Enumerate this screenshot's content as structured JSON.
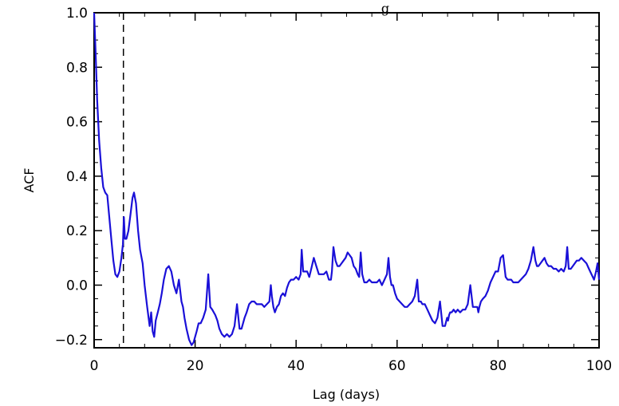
{
  "chart_data": {
    "type": "line",
    "title": "ACF Plot for Kepler-Star-Sample-Lag",
    "title_visible_fragment": "g",
    "xlabel": "Lag (days)",
    "ylabel": "ACF",
    "xlim": [
      0,
      100
    ],
    "ylim": [
      -0.23,
      1.0
    ],
    "x_ticks": [
      0,
      20,
      40,
      60,
      80,
      100
    ],
    "x_tick_labels": [
      "0",
      "20",
      "40",
      "60",
      "80",
      "100"
    ],
    "y_ticks": [
      -0.2,
      0.0,
      0.2,
      0.4,
      0.6,
      0.8,
      1.0
    ],
    "y_tick_labels": [
      "−0.2",
      "0.0",
      "0.2",
      "0.4",
      "0.6",
      "0.8",
      "1.0"
    ],
    "grid": false,
    "vertical_reference_line": {
      "x": 5.8,
      "style": "dashed",
      "color": "#000000"
    },
    "series": [
      {
        "color": "#1a10d8",
        "x": [
          0,
          0.3,
          0.6,
          1,
          1.4,
          1.8,
          2.2,
          2.6,
          3,
          3.4,
          3.8,
          4.2,
          4.6,
          5,
          5.4,
          5.7,
          5.9,
          6.1,
          6.4,
          6.8,
          7.2,
          7.6,
          7.9,
          8.3,
          8.7,
          9.1,
          9.6,
          10,
          10.5,
          11,
          11.3,
          11.6,
          11.9,
          12.2,
          12.6,
          13,
          13.4,
          13.8,
          14.3,
          14.8,
          15.3,
          15.8,
          16.3,
          16.8,
          17.3,
          17.6,
          17.9,
          18.3,
          18.8,
          19.3,
          19.7,
          20,
          20.3,
          20.7,
          21.1,
          21.6,
          22.1,
          22.6,
          23,
          23.4,
          23.7,
          24,
          24.4,
          24.8,
          25.3,
          25.8,
          26.3,
          26.8,
          27.3,
          27.8,
          28.3,
          28.8,
          29.2,
          29.5,
          29.8,
          30.2,
          30.7,
          31.2,
          31.7,
          32.2,
          32.7,
          33.2,
          33.7,
          34.2,
          34.7,
          35,
          35.2,
          35.5,
          35.8,
          36.2,
          36.6,
          37,
          37.4,
          37.8,
          38.2,
          38.6,
          39,
          39.5,
          40,
          40.5,
          40.9,
          41.1,
          41.4,
          41.8,
          42.2,
          42.6,
          43,
          43.5,
          44,
          44.5,
          45,
          45.5,
          46,
          46.5,
          46.9,
          47.1,
          47.4,
          47.8,
          48.2,
          48.6,
          49,
          49.4,
          49.8,
          50.2,
          50.6,
          51,
          51.4,
          51.8,
          52.2,
          52.5,
          52.8,
          53.1,
          53.5,
          54,
          54.5,
          55,
          55.5,
          56,
          56.5,
          57,
          57.5,
          58,
          58.3,
          58.6,
          58.9,
          59.2,
          59.6,
          60,
          60.5,
          61,
          61.5,
          62,
          62.5,
          63,
          63.5,
          64,
          64.3,
          64.5,
          64.7,
          65,
          65.5,
          66,
          66.5,
          67,
          67.5,
          68,
          68.5,
          69,
          69.5,
          69.9,
          70.1,
          70.3,
          70.5,
          70.8,
          71.2,
          71.6,
          72,
          72.5,
          73,
          73.5,
          74,
          74.5,
          75,
          75.5,
          75.9,
          76.1,
          76.3,
          76.6,
          77,
          77.5,
          78,
          78.5,
          79,
          79.5,
          80,
          80.5,
          81,
          81.5,
          81.9,
          82.1,
          82.3,
          82.6,
          83,
          83.5,
          84,
          84.5,
          85,
          85.5,
          86,
          86.5,
          87,
          87.4,
          87.7,
          88,
          88.4,
          88.8,
          89.2,
          89.6,
          90,
          90.5,
          91,
          91.5,
          92,
          92.5,
          93,
          93.4,
          93.7,
          94,
          94.4,
          94.8,
          95.2,
          95.6,
          96,
          96.5,
          97,
          97.5,
          98,
          98.5,
          99,
          99.4,
          99.7,
          100
        ],
        "y": [
          1.0,
          0.85,
          0.68,
          0.53,
          0.43,
          0.36,
          0.34,
          0.33,
          0.25,
          0.17,
          0.09,
          0.04,
          0.03,
          0.05,
          0.1,
          0.15,
          0.25,
          0.17,
          0.17,
          0.2,
          0.26,
          0.32,
          0.34,
          0.3,
          0.2,
          0.13,
          0.08,
          0.0,
          -0.08,
          -0.15,
          -0.1,
          -0.17,
          -0.19,
          -0.13,
          -0.1,
          -0.07,
          -0.03,
          0.02,
          0.06,
          0.07,
          0.05,
          0.0,
          -0.03,
          0.02,
          -0.06,
          -0.08,
          -0.12,
          -0.16,
          -0.2,
          -0.22,
          -0.21,
          -0.19,
          -0.17,
          -0.14,
          -0.14,
          -0.12,
          -0.09,
          0.04,
          -0.08,
          -0.09,
          -0.1,
          -0.11,
          -0.13,
          -0.16,
          -0.18,
          -0.19,
          -0.18,
          -0.19,
          -0.18,
          -0.15,
          -0.07,
          -0.16,
          -0.16,
          -0.14,
          -0.12,
          -0.1,
          -0.07,
          -0.06,
          -0.06,
          -0.07,
          -0.07,
          -0.07,
          -0.08,
          -0.07,
          -0.06,
          0.0,
          -0.04,
          -0.08,
          -0.1,
          -0.08,
          -0.07,
          -0.04,
          -0.03,
          -0.04,
          -0.01,
          0.01,
          0.02,
          0.02,
          0.03,
          0.02,
          0.04,
          0.13,
          0.05,
          0.05,
          0.05,
          0.03,
          0.06,
          0.1,
          0.07,
          0.04,
          0.04,
          0.04,
          0.05,
          0.02,
          0.02,
          0.05,
          0.14,
          0.09,
          0.07,
          0.07,
          0.08,
          0.09,
          0.1,
          0.12,
          0.11,
          0.1,
          0.07,
          0.06,
          0.04,
          0.03,
          0.12,
          0.04,
          0.01,
          0.01,
          0.02,
          0.01,
          0.01,
          0.01,
          0.02,
          0.0,
          0.02,
          0.04,
          0.1,
          0.03,
          0.0,
          0.0,
          -0.03,
          -0.05,
          -0.06,
          -0.07,
          -0.08,
          -0.08,
          -0.07,
          -0.06,
          -0.04,
          0.02,
          -0.06,
          -0.06,
          -0.06,
          -0.07,
          -0.07,
          -0.09,
          -0.11,
          -0.13,
          -0.14,
          -0.12,
          -0.06,
          -0.15,
          -0.15,
          -0.12,
          -0.13,
          -0.11,
          -0.1,
          -0.1,
          -0.09,
          -0.1,
          -0.09,
          -0.1,
          -0.09,
          -0.09,
          -0.07,
          0.0,
          -0.08,
          -0.08,
          -0.08,
          -0.1,
          -0.08,
          -0.06,
          -0.05,
          -0.04,
          -0.02,
          0.01,
          0.03,
          0.05,
          0.05,
          0.1,
          0.11,
          0.03,
          0.02,
          0.02,
          0.02,
          0.02,
          0.01,
          0.01,
          0.01,
          0.02,
          0.03,
          0.04,
          0.06,
          0.09,
          0.14,
          0.09,
          0.07,
          0.07,
          0.08,
          0.09,
          0.1,
          0.08,
          0.07,
          0.07,
          0.06,
          0.06,
          0.05,
          0.06,
          0.05,
          0.07,
          0.14,
          0.06,
          0.06,
          0.07,
          0.08,
          0.09,
          0.09,
          0.1,
          0.09,
          0.08,
          0.06,
          0.04,
          0.02,
          0.05,
          0.08,
          0.02
        ]
      }
    ]
  }
}
